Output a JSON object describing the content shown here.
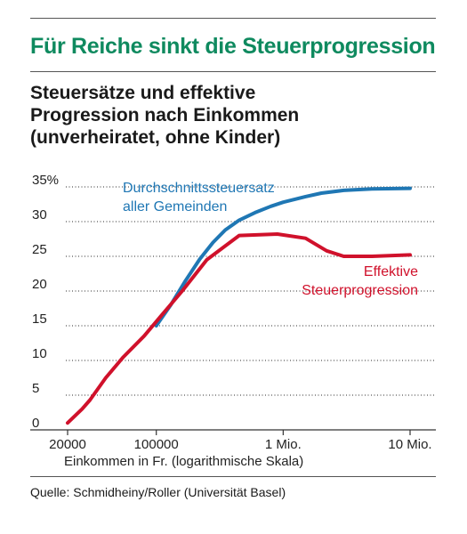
{
  "headline": "Für Reiche sinkt die Steuerprogression",
  "subtitle_lines": [
    "Steuersätze und effektive",
    "Progression nach Einkommen",
    "(unverheiratet, ohne Kinder)"
  ],
  "source": "Quelle: Schmidheiny/Roller (Universität Basel)",
  "colors": {
    "headline": "#0f8a5f",
    "avg_series": "#1f77b4",
    "prog_series": "#d0112b"
  },
  "chart_data": {
    "type": "line",
    "xlabel": "Einkommen in Fr. (logarithmische Skala)",
    "x_scale": "log",
    "xlim": [
      20000,
      10000000
    ],
    "x_ticks": [
      {
        "value": 20000,
        "label": "20000"
      },
      {
        "value": 100000,
        "label": "100000"
      },
      {
        "value": 1000000,
        "label": "1 Mio."
      },
      {
        "value": 10000000,
        "label": "10 Mio."
      }
    ],
    "ylim": [
      0,
      35
    ],
    "y_ticks": [
      {
        "value": 35,
        "label": "35%"
      },
      {
        "value": 30,
        "label": "30"
      },
      {
        "value": 25,
        "label": "25"
      },
      {
        "value": 20,
        "label": "20"
      },
      {
        "value": 15,
        "label": "15"
      },
      {
        "value": 10,
        "label": "10"
      },
      {
        "value": 5,
        "label": "5"
      },
      {
        "value": 0,
        "label": "0"
      }
    ],
    "grid": "horizontal dotted",
    "series": [
      {
        "name": "Durchschnittssteuersatz aller Gemeinden",
        "label_lines": [
          "Durchschnittssteuersatz",
          "aller Gemeinden"
        ],
        "points": [
          [
            100000,
            15.0
          ],
          [
            130000,
            18.0
          ],
          [
            170000,
            21.5
          ],
          [
            220000,
            24.6
          ],
          [
            280000,
            27.0
          ],
          [
            350000,
            28.8
          ],
          [
            450000,
            30.2
          ],
          [
            600000,
            31.3
          ],
          [
            800000,
            32.2
          ],
          [
            1000000,
            32.8
          ],
          [
            1500000,
            33.6
          ],
          [
            2000000,
            34.1
          ],
          [
            3000000,
            34.5
          ],
          [
            5000000,
            34.7
          ],
          [
            10000000,
            34.8
          ]
        ]
      },
      {
        "name": "Effektive Steuerprogression",
        "label_lines": [
          "Effektive",
          "Steuerprogression"
        ],
        "points": [
          [
            20000,
            1.0
          ],
          [
            26000,
            3.0
          ],
          [
            30000,
            4.3
          ],
          [
            40000,
            7.5
          ],
          [
            55000,
            10.5
          ],
          [
            80000,
            13.5
          ],
          [
            110000,
            16.5
          ],
          [
            160000,
            20.0
          ],
          [
            250000,
            24.5
          ],
          [
            450000,
            28.0
          ],
          [
            900000,
            28.2
          ],
          [
            1500000,
            27.6
          ],
          [
            2200000,
            25.8
          ],
          [
            3000000,
            25.0
          ],
          [
            5000000,
            25.0
          ],
          [
            10000000,
            25.2
          ]
        ]
      }
    ]
  }
}
